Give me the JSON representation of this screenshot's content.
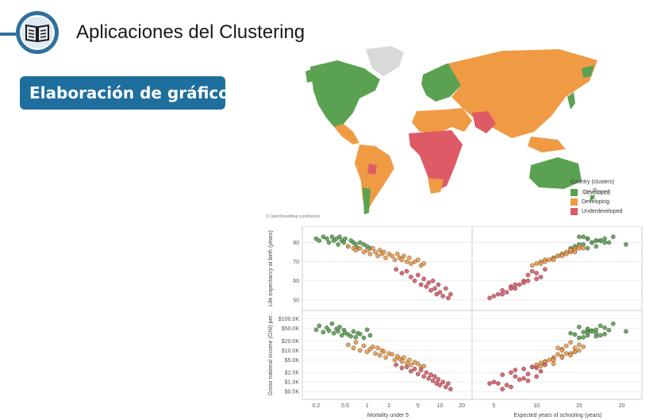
{
  "header": {
    "title": "Aplicaciones del Clustering",
    "badge": "Elaboración de gráficos",
    "icon": "book-icon"
  },
  "map": {
    "attribution": "© OpenStreetMap contributors",
    "legend": {
      "title": "Country (clusters)",
      "items": [
        {
          "label": "Developed",
          "color": "#5aa251"
        },
        {
          "label": "Developing",
          "color": "#f09a44"
        },
        {
          "label": "Underdeveloped",
          "color": "#de5a67"
        }
      ]
    }
  },
  "chart_data": {
    "type": "scatter",
    "colors": {
      "Developed": "#5aa251",
      "Developing": "#f09a44",
      "Underdeveloped": "#de5a67"
    },
    "x_axes": [
      {
        "label": "Mortality under 5",
        "scale": "log",
        "range": [
          0.15,
          25
        ],
        "ticks": [
          0.2,
          0.5,
          1,
          2,
          5,
          10,
          20
        ],
        "tick_labels": [
          "0.2",
          "0.5",
          "1",
          "2",
          "5",
          "10",
          "20"
        ]
      },
      {
        "label": "Expected years of schooling (years)",
        "scale": "linear",
        "range": [
          3,
          22
        ],
        "ticks": [
          5,
          10,
          15,
          20
        ],
        "tick_labels": [
          "5",
          "10",
          "15",
          "20"
        ]
      }
    ],
    "y_axes": [
      {
        "label": "Life expectancy at birth (years)",
        "scale": "linear",
        "range": [
          47,
          86
        ],
        "ticks": [
          50,
          60,
          70,
          80
        ],
        "tick_labels": [
          "50",
          "60",
          "70",
          "80"
        ]
      },
      {
        "label": "Gross national income (GNI) per..",
        "scale": "log",
        "range": [
          450,
          130000
        ],
        "ticks": [
          500,
          1000,
          2000,
          5000,
          10000,
          20000,
          50000,
          100000
        ],
        "tick_labels": [
          "$0.5K",
          "$1.0K",
          "$2.0K",
          "$5.0K",
          "$10.0K",
          "$20.0K",
          "$50.0K",
          "$100.0K"
        ]
      }
    ],
    "series": [
      {
        "name": "Developed",
        "mortality": [
          0.2,
          0.22,
          0.25,
          0.28,
          0.3,
          0.33,
          0.35,
          0.38,
          0.4,
          0.42,
          0.45,
          0.48,
          0.5,
          0.55,
          0.6,
          0.65,
          0.7,
          0.75,
          0.8,
          0.9,
          1.0,
          1.1
        ],
        "life": [
          82,
          81,
          83,
          82,
          80,
          83,
          81,
          82,
          79,
          83,
          81,
          80,
          82,
          78,
          81,
          80,
          79,
          77,
          80,
          79,
          78,
          77
        ],
        "schooling": [
          16,
          17.5,
          15.5,
          18,
          16.5,
          19,
          17,
          16,
          20.5,
          15,
          17.5,
          18.5,
          16,
          14.5,
          17,
          16.5,
          15.5,
          14,
          18,
          15,
          17,
          16
        ],
        "gni": [
          45000,
          60000,
          38000,
          52000,
          42000,
          70000,
          35000,
          48000,
          40000,
          55000,
          30000,
          44000,
          36000,
          32000,
          28000,
          40000,
          26000,
          35000,
          33000,
          25000,
          45000,
          30000
        ]
      },
      {
        "name": "Developing",
        "mortality": [
          0.55,
          0.65,
          0.7,
          0.8,
          0.9,
          1.0,
          1.1,
          1.2,
          1.3,
          1.4,
          1.5,
          1.6,
          1.7,
          1.8,
          2.0,
          2.2,
          2.4,
          2.6,
          2.8,
          3.0,
          3.2,
          3.5,
          3.8,
          4.0,
          4.5,
          5.0,
          5.5,
          6.0
        ],
        "life": [
          78,
          77,
          76,
          77,
          75,
          76,
          74,
          77,
          75,
          73,
          76,
          74,
          75,
          72,
          74,
          73,
          71,
          74,
          72,
          71,
          73,
          70,
          72,
          69,
          70,
          71,
          68,
          69
        ],
        "schooling": [
          15,
          14.5,
          14,
          15,
          13.5,
          14.5,
          13,
          15.5,
          14,
          12.5,
          14,
          13,
          14.5,
          12,
          13.5,
          12.5,
          11.5,
          13,
          12,
          11,
          13,
          10.5,
          12,
          10,
          11,
          12,
          9.5,
          10.5
        ],
        "gni": [
          15000,
          12000,
          18000,
          10000,
          14000,
          9000,
          11000,
          13000,
          8000,
          12000,
          7000,
          10000,
          9000,
          6000,
          8000,
          7500,
          5000,
          6500,
          5500,
          4500,
          6000,
          4000,
          5000,
          3500,
          4200,
          3800,
          3000,
          3200
        ]
      },
      {
        "name": "Underdeveloped",
        "mortality": [
          2.5,
          3.0,
          3.5,
          4.0,
          4.5,
          5.0,
          5.5,
          6.0,
          6.5,
          7.0,
          7.5,
          8.0,
          8.5,
          9.0,
          9.5,
          10.0,
          11.0,
          12.0,
          13.0,
          14.0
        ],
        "life": [
          66,
          64,
          65,
          62,
          60,
          63,
          58,
          61,
          57,
          59,
          55,
          60,
          56,
          53,
          58,
          54,
          52,
          56,
          51,
          53
        ],
        "schooling": [
          11,
          10,
          9.5,
          10.5,
          8.5,
          9,
          7.5,
          10,
          7,
          8.5,
          6,
          9,
          7.5,
          5.5,
          8,
          6.5,
          5,
          7,
          4.5,
          6
        ],
        "gni": [
          3500,
          2800,
          3000,
          2200,
          2600,
          1800,
          2400,
          1500,
          2000,
          1300,
          1700,
          1100,
          1500,
          900,
          1200,
          800,
          1000,
          700,
          900,
          600
        ]
      }
    ]
  }
}
